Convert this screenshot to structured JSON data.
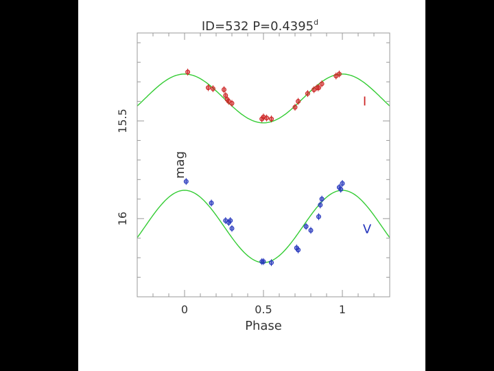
{
  "chart_data": {
    "type": "scatter",
    "title": "ID=532   P=0.4395",
    "title_superscript": "d",
    "xlabel": "Phase",
    "ylabel": "mag",
    "xlim": [
      -0.3,
      1.3
    ],
    "ylim": [
      16.4,
      15.05
    ],
    "y_inverted": true,
    "grid": false,
    "x_ticks": [
      {
        "value": 0,
        "label": "0"
      },
      {
        "value": 0.5,
        "label": "0.5"
      },
      {
        "value": 1,
        "label": "1"
      }
    ],
    "y_ticks": [
      {
        "value": 15.5,
        "label": "15.5"
      },
      {
        "value": 16,
        "label": "16"
      }
    ],
    "series": [
      {
        "name": "I",
        "color": "#cc2222",
        "fit_color": "#33cc33",
        "fit": {
          "mean": 15.385,
          "amplitude": 0.125,
          "peak_phase": 0.0
        },
        "points": [
          [
            0.02,
            15.25
          ],
          [
            0.15,
            15.33
          ],
          [
            0.18,
            15.335
          ],
          [
            0.25,
            15.34
          ],
          [
            0.26,
            15.37
          ],
          [
            0.27,
            15.39
          ],
          [
            0.28,
            15.4
          ],
          [
            0.3,
            15.41
          ],
          [
            0.49,
            15.49
          ],
          [
            0.5,
            15.48
          ],
          [
            0.52,
            15.485
          ],
          [
            0.55,
            15.49
          ],
          [
            0.7,
            15.43
          ],
          [
            0.72,
            15.4
          ],
          [
            0.78,
            15.36
          ],
          [
            0.82,
            15.34
          ],
          [
            0.84,
            15.33
          ],
          [
            0.85,
            15.33
          ],
          [
            0.87,
            15.31
          ],
          [
            0.96,
            15.27
          ],
          [
            0.98,
            15.26
          ]
        ]
      },
      {
        "name": "V",
        "color": "#2233bb",
        "fit_color": "#33cc33",
        "fit": {
          "mean": 16.04,
          "amplitude": 0.185,
          "peak_phase": 0.0
        },
        "points": [
          [
            0.01,
            15.81
          ],
          [
            0.17,
            15.92
          ],
          [
            0.26,
            16.01
          ],
          [
            0.28,
            16.02
          ],
          [
            0.29,
            16.01
          ],
          [
            0.3,
            16.05
          ],
          [
            0.49,
            16.22
          ],
          [
            0.5,
            16.22
          ],
          [
            0.55,
            16.225
          ],
          [
            0.71,
            16.15
          ],
          [
            0.72,
            16.16
          ],
          [
            0.77,
            16.04
          ],
          [
            0.8,
            16.06
          ],
          [
            0.85,
            15.99
          ],
          [
            0.86,
            15.93
          ],
          [
            0.87,
            15.9
          ],
          [
            0.98,
            15.84
          ],
          [
            0.99,
            15.85
          ],
          [
            1.0,
            15.82
          ]
        ]
      }
    ]
  }
}
